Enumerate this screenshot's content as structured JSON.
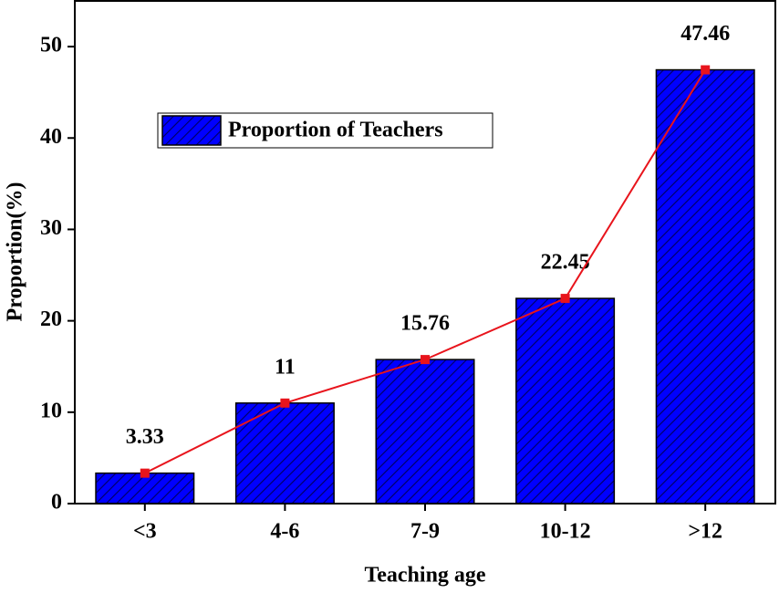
{
  "chart_data": {
    "type": "bar",
    "x_label": "Teaching age",
    "y_label": "Proportion(%)",
    "categories": [
      "<3",
      "4-6",
      "7-9",
      "10-12",
      ">12"
    ],
    "series": [
      {
        "name": "Proportion of Teachers",
        "color": "#0000ff",
        "values": [
          3.33,
          11,
          15.76,
          22.45,
          47.46
        ]
      }
    ],
    "line_color": "#e8141c",
    "ylim": [
      0,
      55
    ],
    "yticks": [
      0,
      10,
      20,
      30,
      40,
      50
    ],
    "show_value_labels": true
  }
}
